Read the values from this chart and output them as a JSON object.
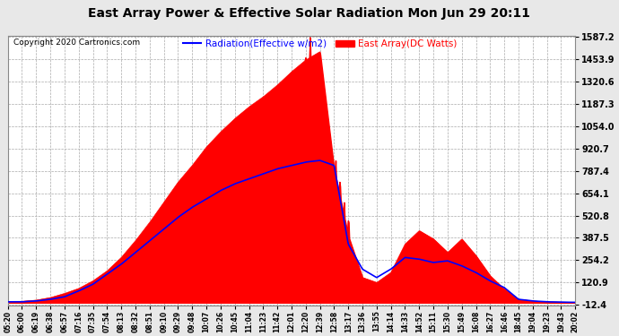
{
  "title": "East Array Power & Effective Solar Radiation Mon Jun 29 20:11",
  "copyright": "Copyright 2020 Cartronics.com",
  "legend_blue": "Radiation(Effective w/m2)",
  "legend_red": "East Array(DC Watts)",
  "yticks": [
    1587.2,
    1453.9,
    1320.6,
    1187.3,
    1054.0,
    920.7,
    787.4,
    654.1,
    520.8,
    387.5,
    254.2,
    120.9,
    -12.4
  ],
  "ymin": -12.4,
  "ymax": 1587.2,
  "xtick_labels": [
    "05:20",
    "06:00",
    "06:19",
    "06:38",
    "06:57",
    "07:16",
    "07:35",
    "07:54",
    "08:13",
    "08:32",
    "08:51",
    "09:10",
    "09:29",
    "09:48",
    "10:07",
    "10:26",
    "10:45",
    "11:04",
    "11:23",
    "11:42",
    "12:01",
    "12:20",
    "12:39",
    "12:58",
    "13:17",
    "13:36",
    "13:55",
    "14:14",
    "14:33",
    "14:52",
    "15:11",
    "15:30",
    "15:49",
    "16:08",
    "16:27",
    "16:46",
    "18:45",
    "19:04",
    "19:23",
    "19:43",
    "20:02"
  ],
  "background_color": "#e8e8e8",
  "plot_bg_color": "#ffffff",
  "grid_color": "#aaaaaa",
  "red_color": "#ff0000",
  "blue_color": "#0000ff",
  "title_color": "#000000",
  "copyright_color": "#000000"
}
